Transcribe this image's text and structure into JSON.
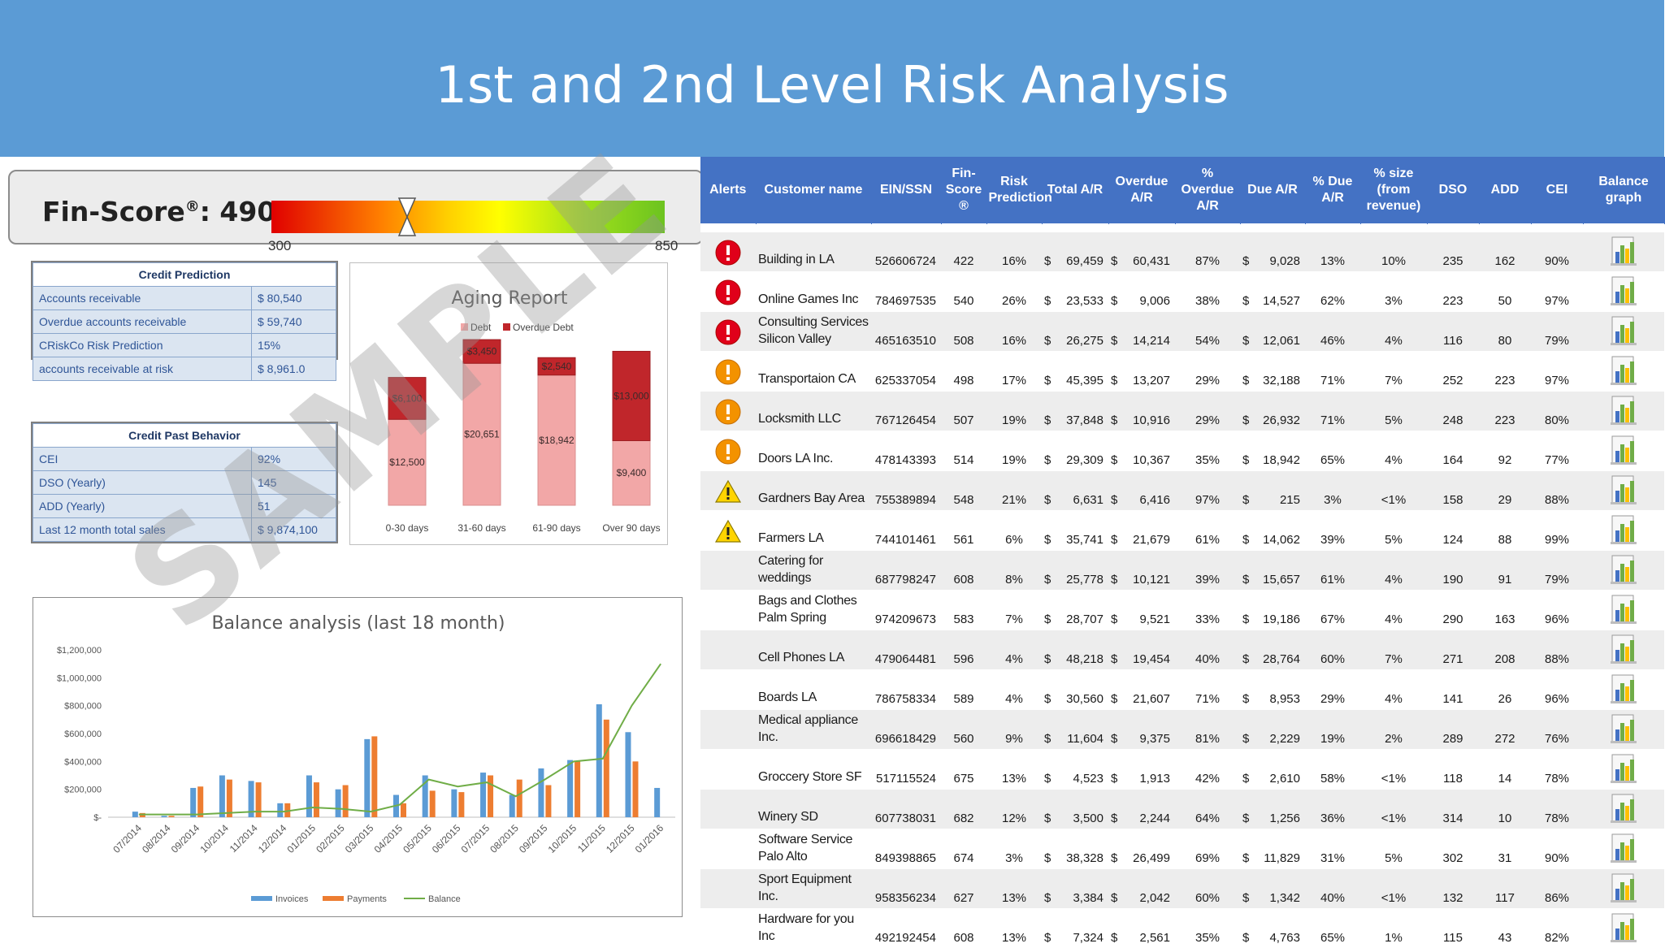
{
  "title": "1st and 2nd Level Risk Analysis",
  "fin_score": {
    "label": "Fin-Score",
    "reg": "®",
    "value": "490",
    "min": "300",
    "max": "850",
    "score_fraction": 0.346
  },
  "credit_prediction": {
    "title": "Credit Prediction",
    "rows": [
      {
        "label": "Accounts receivable",
        "value": "$ 80,540"
      },
      {
        "label": "Overdue accounts receivable",
        "value": "$ 59,740"
      },
      {
        "label": "CRiskCo Risk Prediction",
        "value": "15%"
      },
      {
        "label": "accounts receivable at risk",
        "value": "$ 8,961.0"
      }
    ]
  },
  "credit_past_behavior": {
    "title": "Credit Past Behavior",
    "rows": [
      {
        "label": "CEI",
        "value": "92%"
      },
      {
        "label": "DSO (Yearly)",
        "value": "145"
      },
      {
        "label": "ADD (Yearly)",
        "value": "51"
      },
      {
        "label": "Last 12 month total sales",
        "value": "$ 9,874,100"
      }
    ]
  },
  "watermark": "SAMPLE",
  "colors": {
    "banner": "#5b9bd5",
    "header": "#4472c4",
    "debt": "#f2a7a7",
    "overdue": "#c0262b",
    "invoices": "#5b9bd5",
    "payments": "#ed7d31",
    "balance": "#70ad47"
  },
  "chart_data": [
    {
      "type": "bar",
      "stacked": true,
      "title": "Aging Report",
      "legend": [
        "Debt",
        "Overdue Debt"
      ],
      "legend_position": "top",
      "categories": [
        "0-30 days",
        "31-60 days",
        "61-90 days",
        "Over 90 days"
      ],
      "series": [
        {
          "name": "Debt",
          "values": [
            12500,
            20651,
            18942,
            9400
          ],
          "labels": [
            "$12,500",
            "$20,651",
            "$18,942",
            "$9,400"
          ]
        },
        {
          "name": "Overdue Debt",
          "values": [
            6100,
            3450,
            2540,
            13000
          ],
          "labels": [
            "$6,100",
            "$3,450",
            "$2,540",
            "$13,000"
          ]
        }
      ],
      "ylim": [
        0,
        26000
      ]
    },
    {
      "type": "bar",
      "title": "Balance analysis (last 18 month)",
      "legend": [
        "Invoices",
        "Payments",
        "Balance"
      ],
      "legend_position": "bottom",
      "categories": [
        "07/2014",
        "08/2014",
        "09/2014",
        "10/2014",
        "11/2014",
        "12/2014",
        "01/2015",
        "02/2015",
        "03/2015",
        "04/2015",
        "05/2015",
        "06/2015",
        "07/2015",
        "08/2015",
        "09/2015",
        "10/2015",
        "11/2015",
        "12/2015",
        "01/2016"
      ],
      "series": [
        {
          "name": "Invoices",
          "values": [
            40000,
            10000,
            210000,
            300000,
            260000,
            100000,
            300000,
            200000,
            560000,
            160000,
            300000,
            200000,
            320000,
            160000,
            350000,
            410000,
            810000,
            610000,
            210000
          ]
        },
        {
          "name": "Payments",
          "values": [
            30000,
            10000,
            220000,
            270000,
            250000,
            100000,
            250000,
            230000,
            580000,
            100000,
            190000,
            180000,
            300000,
            270000,
            230000,
            400000,
            700000,
            400000,
            0
          ]
        },
        {
          "name": "Balance",
          "type": "line",
          "values": [
            20000,
            20000,
            20000,
            30000,
            40000,
            40000,
            70000,
            60000,
            40000,
            90000,
            270000,
            220000,
            250000,
            150000,
            270000,
            400000,
            420000,
            800000,
            1100000
          ]
        }
      ],
      "yticks": [
        "$-",
        "$200,000",
        "$400,000",
        "$600,000",
        "$800,000",
        "$1,000,000",
        "$1,200,000"
      ],
      "ylim": [
        0,
        1200000
      ]
    }
  ],
  "table": {
    "headers": [
      "Alerts",
      "Customer name",
      "EIN/SSN",
      "Fin-Score ®",
      "Risk Prediction",
      "Total A/R",
      "Overdue A/R",
      "% Overdue A/R",
      "Due A/R",
      "% Due A/R",
      "% size (from revenue)",
      "DSO",
      "ADD",
      "CEI",
      "Balance graph"
    ],
    "rows": [
      {
        "alert": "critical",
        "name": "Building in LA",
        "ein": "526606724",
        "fin": "422",
        "risk": "16%",
        "total": "69,459",
        "overdue": "60,431",
        "pct_overdue": "87%",
        "due": "9,028",
        "pct_due": "13%",
        "size": "10%",
        "dso": "235",
        "add": "162",
        "cei": "90%"
      },
      {
        "alert": "critical",
        "name": "Online Games Inc",
        "ein": "784697535",
        "fin": "540",
        "risk": "26%",
        "total": "23,533",
        "overdue": "9,006",
        "pct_overdue": "38%",
        "due": "14,527",
        "pct_due": "62%",
        "size": "3%",
        "dso": "223",
        "add": "50",
        "cei": "97%"
      },
      {
        "alert": "critical",
        "name": "Consulting Services Silicon Valley",
        "ein": "465163510",
        "fin": "508",
        "risk": "16%",
        "total": "26,275",
        "overdue": "14,214",
        "pct_overdue": "54%",
        "due": "12,061",
        "pct_due": "46%",
        "size": "4%",
        "dso": "116",
        "add": "80",
        "cei": "79%"
      },
      {
        "alert": "warning",
        "name": "Transportaion CA",
        "ein": "625337054",
        "fin": "498",
        "risk": "17%",
        "total": "45,395",
        "overdue": "13,207",
        "pct_overdue": "29%",
        "due": "32,188",
        "pct_due": "71%",
        "size": "7%",
        "dso": "252",
        "add": "223",
        "cei": "97%"
      },
      {
        "alert": "warning",
        "name": "Locksmith LLC",
        "ein": "767126454",
        "fin": "507",
        "risk": "19%",
        "total": "37,848",
        "overdue": "10,916",
        "pct_overdue": "29%",
        "due": "26,932",
        "pct_due": "71%",
        "size": "5%",
        "dso": "248",
        "add": "223",
        "cei": "80%"
      },
      {
        "alert": "warning",
        "name": "Doors LA Inc.",
        "ein": "478143393",
        "fin": "514",
        "risk": "19%",
        "total": "29,309",
        "overdue": "10,367",
        "pct_overdue": "35%",
        "due": "18,942",
        "pct_due": "65%",
        "size": "4%",
        "dso": "164",
        "add": "92",
        "cei": "77%"
      },
      {
        "alert": "caution",
        "name": "Gardners Bay Area",
        "ein": "755389894",
        "fin": "548",
        "risk": "21%",
        "total": "6,631",
        "overdue": "6,416",
        "pct_overdue": "97%",
        "due": "215",
        "pct_due": "3%",
        "size": "<1%",
        "dso": "158",
        "add": "29",
        "cei": "88%"
      },
      {
        "alert": "caution",
        "name": "Farmers LA",
        "ein": "744101461",
        "fin": "561",
        "risk": "6%",
        "total": "35,741",
        "overdue": "21,679",
        "pct_overdue": "61%",
        "due": "14,062",
        "pct_due": "39%",
        "size": "5%",
        "dso": "124",
        "add": "88",
        "cei": "99%"
      },
      {
        "alert": "none",
        "name": "Catering for weddings",
        "ein": "687798247",
        "fin": "608",
        "risk": "8%",
        "total": "25,778",
        "overdue": "10,121",
        "pct_overdue": "39%",
        "due": "15,657",
        "pct_due": "61%",
        "size": "4%",
        "dso": "190",
        "add": "91",
        "cei": "79%"
      },
      {
        "alert": "none",
        "name": "Bags and Clothes Palm Spring",
        "ein": "974209673",
        "fin": "583",
        "risk": "7%",
        "total": "28,707",
        "overdue": "9,521",
        "pct_overdue": "33%",
        "due": "19,186",
        "pct_due": "67%",
        "size": "4%",
        "dso": "290",
        "add": "163",
        "cei": "96%"
      },
      {
        "alert": "none",
        "name": "Cell Phones LA",
        "ein": "479064481",
        "fin": "596",
        "risk": "4%",
        "total": "48,218",
        "overdue": "19,454",
        "pct_overdue": "40%",
        "due": "28,764",
        "pct_due": "60%",
        "size": "7%",
        "dso": "271",
        "add": "208",
        "cei": "88%"
      },
      {
        "alert": "none",
        "name": "Boards LA",
        "ein": "786758334",
        "fin": "589",
        "risk": "4%",
        "total": "30,560",
        "overdue": "21,607",
        "pct_overdue": "71%",
        "due": "8,953",
        "pct_due": "29%",
        "size": "4%",
        "dso": "141",
        "add": "26",
        "cei": "96%"
      },
      {
        "alert": "none",
        "name": "Medical appliance Inc.",
        "ein": "696618429",
        "fin": "560",
        "risk": "9%",
        "total": "11,604",
        "overdue": "9,375",
        "pct_overdue": "81%",
        "due": "2,229",
        "pct_due": "19%",
        "size": "2%",
        "dso": "289",
        "add": "272",
        "cei": "76%"
      },
      {
        "alert": "none",
        "name": "Groccery Store SF",
        "ein": "517115524",
        "fin": "675",
        "risk": "13%",
        "total": "4,523",
        "overdue": "1,913",
        "pct_overdue": "42%",
        "due": "2,610",
        "pct_due": "58%",
        "size": "<1%",
        "dso": "118",
        "add": "14",
        "cei": "78%"
      },
      {
        "alert": "none",
        "name": "Winery SD",
        "ein": "607738031",
        "fin": "682",
        "risk": "12%",
        "total": "3,500",
        "overdue": "2,244",
        "pct_overdue": "64%",
        "due": "1,256",
        "pct_due": "36%",
        "size": "<1%",
        "dso": "314",
        "add": "10",
        "cei": "78%"
      },
      {
        "alert": "none",
        "name": "Software Service Palo Alto",
        "ein": "849398865",
        "fin": "674",
        "risk": "3%",
        "total": "38,328",
        "overdue": "26,499",
        "pct_overdue": "69%",
        "due": "11,829",
        "pct_due": "31%",
        "size": "5%",
        "dso": "302",
        "add": "31",
        "cei": "90%"
      },
      {
        "alert": "none",
        "name": "Sport Equipment Inc.",
        "ein": "958356234",
        "fin": "627",
        "risk": "13%",
        "total": "3,384",
        "overdue": "2,042",
        "pct_overdue": "60%",
        "due": "1,342",
        "pct_due": "40%",
        "size": "<1%",
        "dso": "132",
        "add": "117",
        "cei": "86%"
      },
      {
        "alert": "none",
        "name": "Hardware for you Inc",
        "ein": "492192454",
        "fin": "608",
        "risk": "13%",
        "total": "7,324",
        "overdue": "2,561",
        "pct_overdue": "35%",
        "due": "4,763",
        "pct_due": "65%",
        "size": "1%",
        "dso": "115",
        "add": "43",
        "cei": "82%"
      }
    ],
    "currency": "$",
    "alert_icons": {
      "critical": "error-icon",
      "warning": "warning-circle-icon",
      "caution": "caution-triangle-icon"
    },
    "graph_icon": "bar-chart-icon"
  }
}
